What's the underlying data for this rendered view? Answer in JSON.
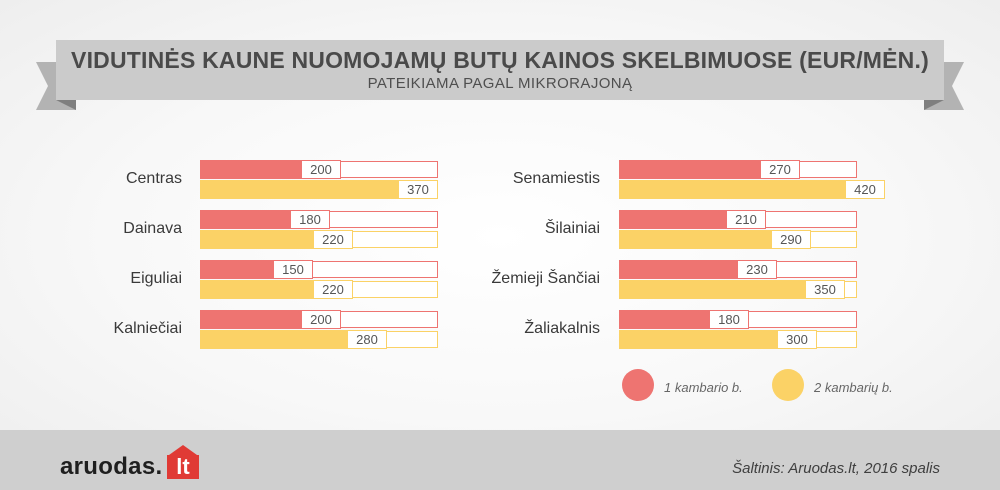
{
  "header": {
    "title": "VIDUTINĖS KAUNE NUOMOJAMŲ BUTŲ KAINOS SKELBIMUOSE (EUR/MĖN.)",
    "subtitle": "PATEIKIAMA PAGAL MIKRORAJONĄ"
  },
  "colors": {
    "series1": "#ee7471",
    "series2": "#fbd266"
  },
  "chart_data": {
    "type": "bar",
    "orientation": "horizontal",
    "title": "VIDUTINĖS KAUNE NUOMOJAMŲ BUTŲ KAINOS SKELBIMUOSE (EUR/MĖN.)",
    "subtitle": "PATEIKIAMA PAGAL MIKRORAJONĄ",
    "categories": [
      "Centras",
      "Dainava",
      "Eiguliai",
      "Kalniečiai",
      "Senamiestis",
      "Šilainiai",
      "Žemieji Šančiai",
      "Žaliakalnis"
    ],
    "series": [
      {
        "name": "1 kambario b.",
        "values": [
          200,
          180,
          150,
          200,
          270,
          210,
          230,
          180
        ]
      },
      {
        "name": "2 kambarių b.",
        "values": [
          370,
          220,
          220,
          280,
          420,
          290,
          350,
          300
        ]
      }
    ],
    "xlim": [
      0,
      470
    ],
    "legend": "bottom-right",
    "grid": false
  },
  "legend": [
    {
      "label": "1 kambario b."
    },
    {
      "label": "2 kambarių b."
    }
  ],
  "footer": {
    "logo_text": "aruodas",
    "logo_suffix": "lt",
    "source": "Šaltinis: Aruodas.lt, 2016 spalis"
  }
}
